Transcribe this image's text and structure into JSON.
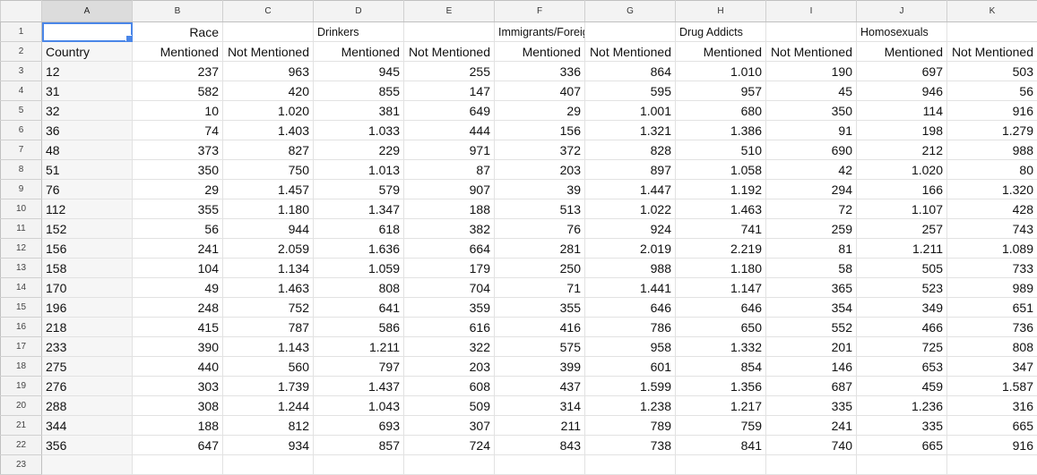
{
  "columns": [
    "A",
    "B",
    "C",
    "D",
    "E",
    "F",
    "G",
    "H",
    "I",
    "J",
    "K"
  ],
  "row_numbers": [
    "1",
    "2",
    "3",
    "4",
    "5",
    "6",
    "7",
    "8",
    "9",
    "10",
    "11",
    "12",
    "13",
    "14",
    "15",
    "16",
    "17",
    "18",
    "19",
    "20",
    "21",
    "22",
    "23"
  ],
  "header_row1": [
    "",
    "Race",
    "",
    "Drinkers",
    "",
    "Immigrants/Foreign Workers",
    "",
    "Drug Addicts",
    "",
    "Homosexuals",
    ""
  ],
  "header_row2": [
    "Country",
    "Mentioned",
    "Not Mentioned",
    "Mentioned",
    "Not Mentioned",
    "Mentioned",
    "Not Mentioned",
    "Mentioned",
    "Not Mentioned",
    "Mentioned",
    "Not Mentioned"
  ],
  "data_rows": [
    [
      "12",
      "237",
      "963",
      "945",
      "255",
      "336",
      "864",
      "1.010",
      "190",
      "697",
      "503"
    ],
    [
      "31",
      "582",
      "420",
      "855",
      "147",
      "407",
      "595",
      "957",
      "45",
      "946",
      "56"
    ],
    [
      "32",
      "10",
      "1.020",
      "381",
      "649",
      "29",
      "1.001",
      "680",
      "350",
      "114",
      "916"
    ],
    [
      "36",
      "74",
      "1.403",
      "1.033",
      "444",
      "156",
      "1.321",
      "1.386",
      "91",
      "198",
      "1.279"
    ],
    [
      "48",
      "373",
      "827",
      "229",
      "971",
      "372",
      "828",
      "510",
      "690",
      "212",
      "988"
    ],
    [
      "51",
      "350",
      "750",
      "1.013",
      "87",
      "203",
      "897",
      "1.058",
      "42",
      "1.020",
      "80"
    ],
    [
      "76",
      "29",
      "1.457",
      "579",
      "907",
      "39",
      "1.447",
      "1.192",
      "294",
      "166",
      "1.320"
    ],
    [
      "112",
      "355",
      "1.180",
      "1.347",
      "188",
      "513",
      "1.022",
      "1.463",
      "72",
      "1.107",
      "428"
    ],
    [
      "152",
      "56",
      "944",
      "618",
      "382",
      "76",
      "924",
      "741",
      "259",
      "257",
      "743"
    ],
    [
      "156",
      "241",
      "2.059",
      "1.636",
      "664",
      "281",
      "2.019",
      "2.219",
      "81",
      "1.211",
      "1.089"
    ],
    [
      "158",
      "104",
      "1.134",
      "1.059",
      "179",
      "250",
      "988",
      "1.180",
      "58",
      "505",
      "733"
    ],
    [
      "170",
      "49",
      "1.463",
      "808",
      "704",
      "71",
      "1.441",
      "1.147",
      "365",
      "523",
      "989"
    ],
    [
      "196",
      "248",
      "752",
      "641",
      "359",
      "355",
      "646",
      "646",
      "354",
      "349",
      "651"
    ],
    [
      "218",
      "415",
      "787",
      "586",
      "616",
      "416",
      "786",
      "650",
      "552",
      "466",
      "736"
    ],
    [
      "233",
      "390",
      "1.143",
      "1.211",
      "322",
      "575",
      "958",
      "1.332",
      "201",
      "725",
      "808"
    ],
    [
      "275",
      "440",
      "560",
      "797",
      "203",
      "399",
      "601",
      "854",
      "146",
      "653",
      "347"
    ],
    [
      "276",
      "303",
      "1.739",
      "1.437",
      "608",
      "437",
      "1.599",
      "1.356",
      "687",
      "459",
      "1.587"
    ],
    [
      "288",
      "308",
      "1.244",
      "1.043",
      "509",
      "314",
      "1.238",
      "1.217",
      "335",
      "1.236",
      "316"
    ],
    [
      "344",
      "188",
      "812",
      "693",
      "307",
      "211",
      "789",
      "759",
      "241",
      "335",
      "665"
    ],
    [
      "356",
      "647",
      "934",
      "857",
      "724",
      "843",
      "738",
      "841",
      "740",
      "665",
      "916"
    ]
  ],
  "selection": {
    "cell": "A1"
  },
  "colors": {
    "selection": "#4a86e8",
    "header_bg": "#f3f3f3",
    "grid": "#e2e2e2"
  }
}
